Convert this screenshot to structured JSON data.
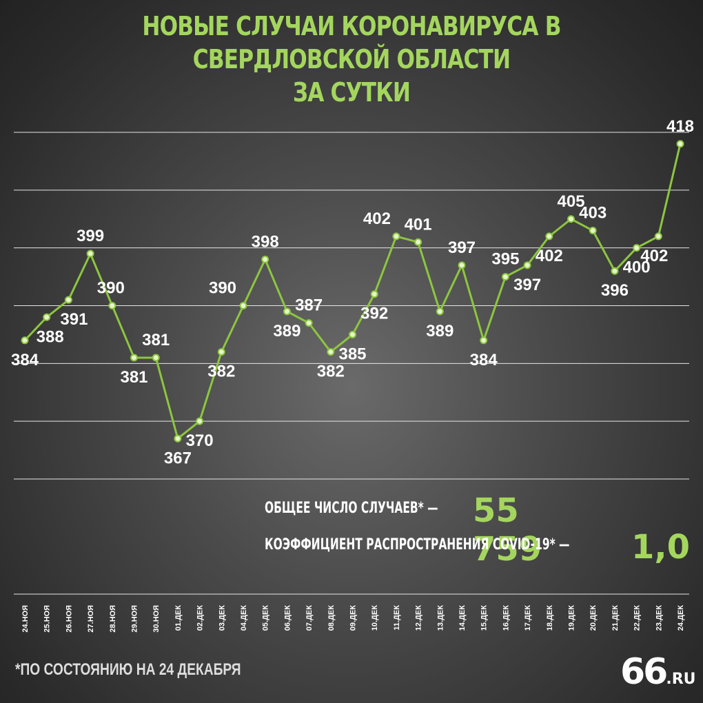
{
  "header": {
    "title": "НОВЫЕ СЛУЧАИ КОРОНАВИРУСА В СВЕРДЛОВСКОЙ ОБЛАСТИ\nЗА СУТКИ"
  },
  "chart_data": {
    "type": "line",
    "categories": [
      "24.ноя",
      "25.ноя",
      "26.ноя",
      "27.ноя",
      "28.ноя",
      "29.ноя",
      "30.ноя",
      "01.дек",
      "02.дек",
      "03.дек",
      "04.дек",
      "05.дек",
      "06.дек",
      "07.дек",
      "08.дек",
      "09.дек",
      "10.дек",
      "11.дек",
      "12.дек",
      "13.дек",
      "14.дек",
      "15.дек",
      "16.дек",
      "17.дек",
      "18.дек",
      "19.дек",
      "20.дек",
      "21.дек",
      "22.дек",
      "23.дек",
      "24.дек"
    ],
    "values": [
      384,
      388,
      391,
      399,
      390,
      381,
      381,
      367,
      370,
      382,
      390,
      398,
      389,
      387,
      382,
      385,
      392,
      402,
      401,
      389,
      397,
      384,
      395,
      397,
      402,
      405,
      403,
      396,
      400,
      402,
      418
    ],
    "ylim": [
      360,
      420
    ],
    "grid": true,
    "line_color": "#8dc63f"
  },
  "summary": {
    "total_label": "ОБЩЕЕ ЧИСЛО СЛУЧАЕВ* —",
    "total_value": "55 759",
    "r_label": "КОЭФФИЦИЕНТ РАСПРОСТРАНЕНИЯ COVID-19* —",
    "r_value": "1,0"
  },
  "footnote": "*ПО СОСТОЯНИЮ НА 24 ДЕКАБРЯ",
  "logo": {
    "main": "66",
    "suffix": ".RU"
  }
}
